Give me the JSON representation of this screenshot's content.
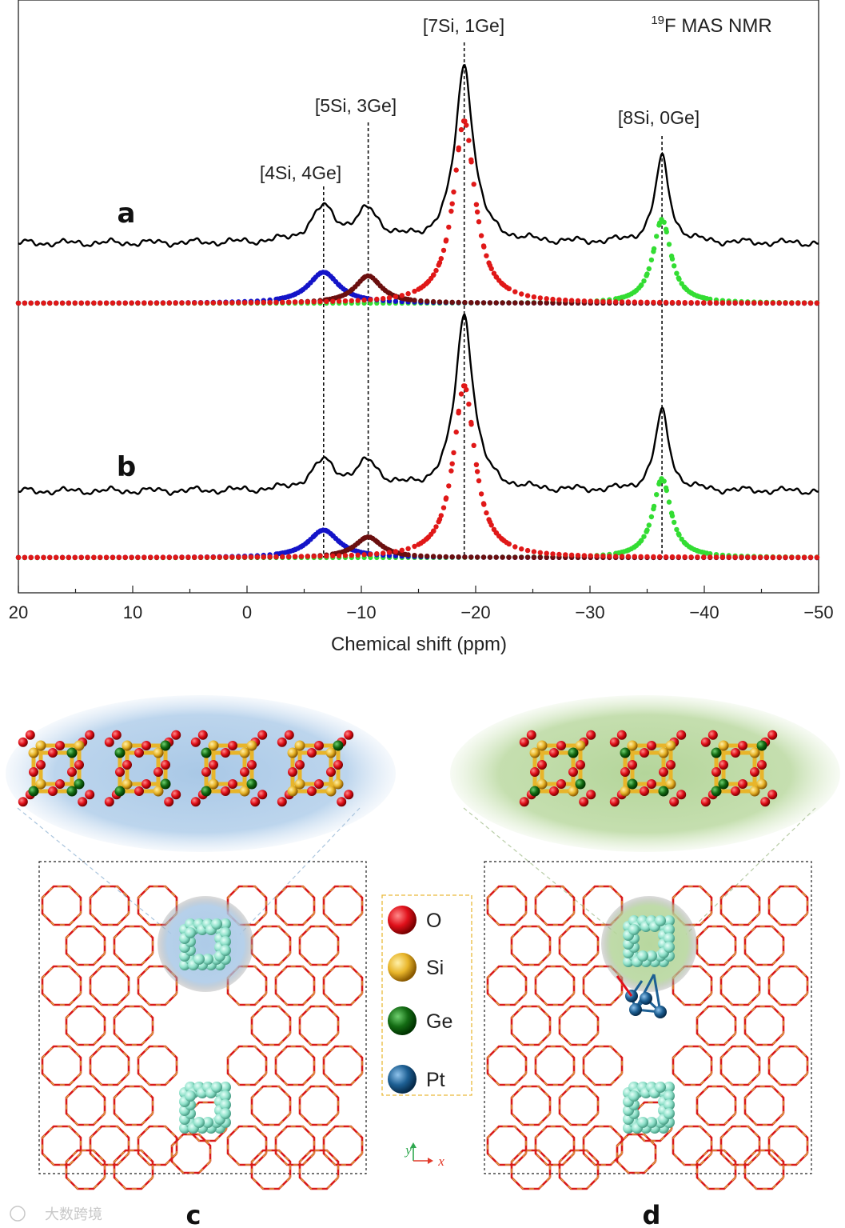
{
  "chart_data": {
    "type": "line",
    "title": "MAS NMR",
    "title_superscript": "19",
    "title_nucleus": "F",
    "xlabel": "Chemical shift (ppm)",
    "ylabel": "",
    "xlim": [
      20,
      -50
    ],
    "x_ticks": [
      20,
      10,
      0,
      -10,
      -20,
      -30,
      -40,
      -50
    ],
    "x_tick_labels": [
      "20",
      "10",
      "0",
      "−10",
      "−20",
      "−30",
      "−40",
      "−50"
    ],
    "peak_labels": [
      {
        "text": "[4Si, 4Ge]",
        "shift": -6.7
      },
      {
        "text": "[5Si, 3Ge]",
        "shift": -10.6
      },
      {
        "text": "[7Si, 1Ge]",
        "shift": -19.0
      },
      {
        "text": "[8Si, 0Ge]",
        "shift": -36.3
      }
    ],
    "panels": [
      {
        "label": "a",
        "experimental_peaks": [
          {
            "center": -6.7,
            "height": 0.19,
            "width": 1.3
          },
          {
            "center": -10.6,
            "height": 0.17,
            "width": 1.2
          },
          {
            "center": -19.0,
            "height": 1.0,
            "width": 0.95
          },
          {
            "center": -36.3,
            "height": 0.48,
            "width": 0.75
          }
        ],
        "deconvolution": [
          {
            "name": "[4Si, 4Ge]",
            "color": "#1414c8",
            "center": -6.7,
            "height": 0.17,
            "width": 1.6
          },
          {
            "name": "[5Si, 3Ge]",
            "color": "#6b0f0f",
            "center": -10.6,
            "height": 0.15,
            "width": 1.4
          },
          {
            "name": "[7Si, 1Ge]",
            "color": "#e01818",
            "center": -19.0,
            "height": 1.0,
            "width": 1.15
          },
          {
            "name": "[8Si, 0Ge]",
            "color": "#33dd33",
            "center": -36.3,
            "height": 0.46,
            "width": 0.95
          }
        ]
      },
      {
        "label": "b",
        "experimental_peaks": [
          {
            "center": -6.7,
            "height": 0.16,
            "width": 1.3
          },
          {
            "center": -10.6,
            "height": 0.15,
            "width": 1.2
          },
          {
            "center": -19.0,
            "height": 1.0,
            "width": 0.95
          },
          {
            "center": -36.3,
            "height": 0.45,
            "width": 0.75
          }
        ],
        "deconvolution": [
          {
            "name": "[4Si, 4Ge]",
            "color": "#1414c8",
            "center": -6.7,
            "height": 0.16,
            "width": 1.6
          },
          {
            "name": "[5Si, 3Ge]",
            "color": "#6b0f0f",
            "center": -10.6,
            "height": 0.12,
            "width": 1.4
          },
          {
            "name": "[7Si, 1Ge]",
            "color": "#e01818",
            "center": -19.0,
            "height": 1.0,
            "width": 1.15
          },
          {
            "name": "[8Si, 0Ge]",
            "color": "#33dd33",
            "center": -36.3,
            "height": 0.46,
            "width": 0.95
          }
        ]
      }
    ]
  },
  "structures": {
    "panels": [
      "c",
      "d"
    ],
    "legend": [
      {
        "label": "O",
        "color": "#e0101a"
      },
      {
        "label": "Si",
        "color": "#e8b52a"
      },
      {
        "label": "Ge",
        "color": "#136b13"
      },
      {
        "label": "Pt",
        "color": "#1d5f93"
      }
    ],
    "axis_x": "x",
    "axis_y": "y",
    "cluster_bg_c": "#a9c8e6",
    "cluster_bg_d": "#b4d59a",
    "framework_o_color": "#d91a1a",
    "framework_si_color": "#d9b440",
    "d4r_color": "#8ee0c9"
  },
  "watermark": "大数跨境"
}
